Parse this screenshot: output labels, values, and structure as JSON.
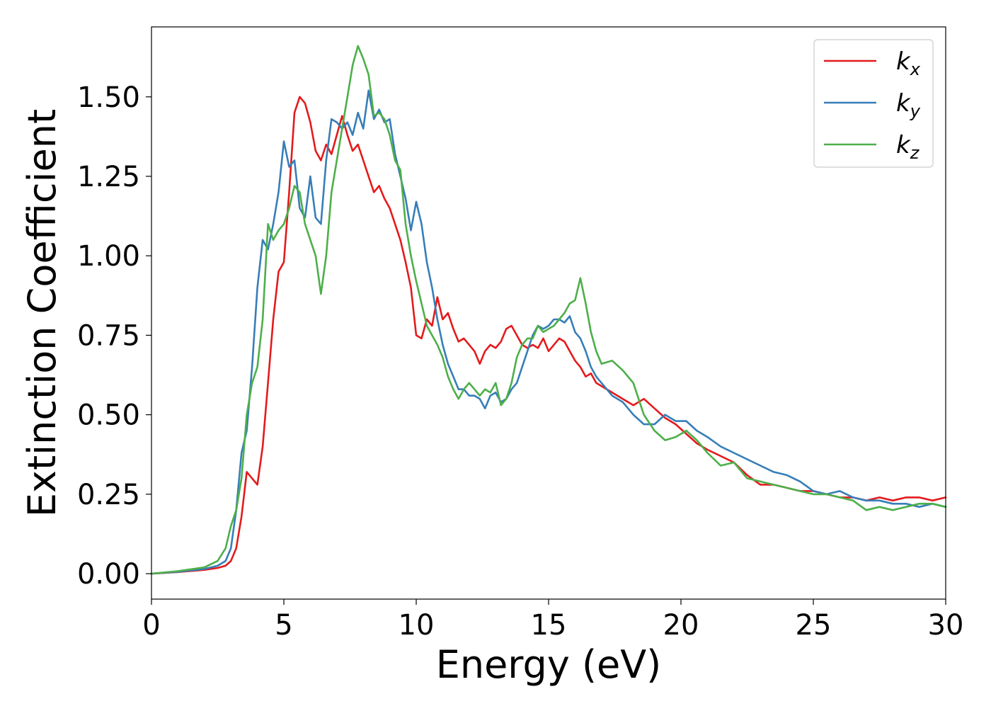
{
  "chart_data": {
    "type": "line",
    "title": "",
    "xlabel": "Energy (eV)",
    "ylabel": "Extinction Coefficient",
    "xlim": [
      0,
      30
    ],
    "ylim": [
      -0.08,
      1.72
    ],
    "xticks": [
      0,
      5,
      10,
      15,
      20,
      25,
      30
    ],
    "xtick_labels": [
      "0",
      "5",
      "10",
      "15",
      "20",
      "25",
      "30"
    ],
    "yticks": [
      0.0,
      0.25,
      0.5,
      0.75,
      1.0,
      1.25,
      1.5
    ],
    "ytick_labels": [
      "0.00",
      "0.25",
      "0.50",
      "0.75",
      "1.00",
      "1.25",
      "1.50"
    ],
    "grid": false,
    "legend_position": "top-right",
    "series": [
      {
        "name": "k_x",
        "label_base": "k",
        "label_sub": "x",
        "color": "#e41a1c",
        "x": [
          0,
          1,
          2,
          2.5,
          2.8,
          3.0,
          3.2,
          3.4,
          3.6,
          3.8,
          4.0,
          4.2,
          4.4,
          4.6,
          4.8,
          5.0,
          5.2,
          5.4,
          5.6,
          5.8,
          6.0,
          6.2,
          6.4,
          6.6,
          6.8,
          7.0,
          7.2,
          7.4,
          7.6,
          7.8,
          8.0,
          8.2,
          8.4,
          8.6,
          8.8,
          9.0,
          9.2,
          9.4,
          9.6,
          9.8,
          10.0,
          10.2,
          10.4,
          10.6,
          10.8,
          11.0,
          11.2,
          11.4,
          11.6,
          11.8,
          12.0,
          12.2,
          12.4,
          12.6,
          12.8,
          13.0,
          13.2,
          13.4,
          13.6,
          13.8,
          14.0,
          14.2,
          14.4,
          14.6,
          14.8,
          15.0,
          15.2,
          15.4,
          15.6,
          15.8,
          16.0,
          16.2,
          16.4,
          16.6,
          16.8,
          17.0,
          17.4,
          17.8,
          18.2,
          18.6,
          19.0,
          19.4,
          19.8,
          20.2,
          20.6,
          21.0,
          21.5,
          22.0,
          22.5,
          23.0,
          23.5,
          24.0,
          24.5,
          25.0,
          25.5,
          26.0,
          26.5,
          27.0,
          27.5,
          28.0,
          28.5,
          29.0,
          29.5,
          30.0
        ],
        "y": [
          0.0,
          0.005,
          0.012,
          0.018,
          0.025,
          0.04,
          0.08,
          0.18,
          0.32,
          0.3,
          0.28,
          0.4,
          0.6,
          0.8,
          0.95,
          0.98,
          1.2,
          1.45,
          1.5,
          1.48,
          1.42,
          1.33,
          1.3,
          1.35,
          1.32,
          1.38,
          1.44,
          1.38,
          1.33,
          1.35,
          1.3,
          1.25,
          1.2,
          1.22,
          1.18,
          1.15,
          1.1,
          1.05,
          0.98,
          0.9,
          0.75,
          0.74,
          0.8,
          0.78,
          0.87,
          0.8,
          0.82,
          0.77,
          0.73,
          0.74,
          0.72,
          0.7,
          0.66,
          0.7,
          0.72,
          0.71,
          0.73,
          0.77,
          0.78,
          0.75,
          0.72,
          0.71,
          0.72,
          0.71,
          0.74,
          0.7,
          0.72,
          0.74,
          0.73,
          0.7,
          0.67,
          0.65,
          0.62,
          0.63,
          0.6,
          0.59,
          0.57,
          0.55,
          0.53,
          0.55,
          0.52,
          0.49,
          0.47,
          0.44,
          0.41,
          0.39,
          0.37,
          0.35,
          0.31,
          0.28,
          0.28,
          0.27,
          0.26,
          0.26,
          0.25,
          0.24,
          0.24,
          0.23,
          0.24,
          0.23,
          0.24,
          0.24,
          0.23,
          0.24
        ]
      },
      {
        "name": "k_y",
        "label_base": "k",
        "label_sub": "y",
        "color": "#377eb8",
        "x": [
          0,
          1,
          2,
          2.5,
          2.8,
          3.0,
          3.2,
          3.4,
          3.6,
          3.8,
          4.0,
          4.2,
          4.4,
          4.6,
          4.8,
          5.0,
          5.2,
          5.4,
          5.6,
          5.8,
          6.0,
          6.2,
          6.4,
          6.6,
          6.8,
          7.0,
          7.2,
          7.4,
          7.6,
          7.8,
          8.0,
          8.2,
          8.4,
          8.6,
          8.8,
          9.0,
          9.2,
          9.4,
          9.6,
          9.8,
          10.0,
          10.2,
          10.4,
          10.6,
          10.8,
          11.0,
          11.2,
          11.4,
          11.6,
          11.8,
          12.0,
          12.2,
          12.4,
          12.6,
          12.8,
          13.0,
          13.2,
          13.4,
          13.6,
          13.8,
          14.0,
          14.2,
          14.4,
          14.6,
          14.8,
          15.0,
          15.2,
          15.4,
          15.6,
          15.8,
          16.0,
          16.2,
          16.4,
          16.6,
          16.8,
          17.0,
          17.4,
          17.8,
          18.2,
          18.6,
          19.0,
          19.4,
          19.8,
          20.2,
          20.6,
          21.0,
          21.5,
          22.0,
          22.5,
          23.0,
          23.5,
          24.0,
          24.5,
          25.0,
          25.5,
          26.0,
          26.5,
          27.0,
          27.5,
          28.0,
          28.5,
          29.0,
          29.5,
          30.0
        ],
        "y": [
          0.0,
          0.006,
          0.015,
          0.025,
          0.04,
          0.08,
          0.2,
          0.38,
          0.45,
          0.65,
          0.9,
          1.05,
          1.02,
          1.1,
          1.2,
          1.36,
          1.28,
          1.3,
          1.15,
          1.12,
          1.25,
          1.12,
          1.1,
          1.3,
          1.43,
          1.42,
          1.4,
          1.42,
          1.38,
          1.45,
          1.4,
          1.52,
          1.43,
          1.46,
          1.42,
          1.43,
          1.32,
          1.25,
          1.18,
          1.08,
          1.17,
          1.1,
          0.98,
          0.9,
          0.8,
          0.72,
          0.66,
          0.62,
          0.58,
          0.58,
          0.56,
          0.56,
          0.55,
          0.52,
          0.56,
          0.57,
          0.54,
          0.55,
          0.58,
          0.6,
          0.65,
          0.7,
          0.75,
          0.78,
          0.77,
          0.78,
          0.8,
          0.8,
          0.79,
          0.81,
          0.76,
          0.74,
          0.7,
          0.65,
          0.62,
          0.6,
          0.56,
          0.54,
          0.5,
          0.47,
          0.47,
          0.5,
          0.48,
          0.48,
          0.45,
          0.43,
          0.4,
          0.38,
          0.36,
          0.34,
          0.32,
          0.31,
          0.29,
          0.26,
          0.25,
          0.26,
          0.24,
          0.23,
          0.23,
          0.22,
          0.22,
          0.21,
          0.22,
          0.21
        ]
      },
      {
        "name": "k_z",
        "label_base": "k",
        "label_sub": "z",
        "color": "#4daf4a",
        "x": [
          0,
          1,
          2,
          2.5,
          2.8,
          3.0,
          3.2,
          3.4,
          3.6,
          3.8,
          4.0,
          4.2,
          4.4,
          4.6,
          4.8,
          5.0,
          5.2,
          5.4,
          5.6,
          5.8,
          6.0,
          6.2,
          6.4,
          6.6,
          6.8,
          7.0,
          7.2,
          7.4,
          7.6,
          7.8,
          8.0,
          8.2,
          8.4,
          8.6,
          8.8,
          9.0,
          9.2,
          9.4,
          9.6,
          9.8,
          10.0,
          10.2,
          10.4,
          10.6,
          10.8,
          11.0,
          11.2,
          11.4,
          11.6,
          11.8,
          12.0,
          12.2,
          12.4,
          12.6,
          12.8,
          13.0,
          13.2,
          13.4,
          13.6,
          13.8,
          14.0,
          14.2,
          14.4,
          14.6,
          14.8,
          15.0,
          15.2,
          15.4,
          15.6,
          15.8,
          16.0,
          16.2,
          16.4,
          16.6,
          16.8,
          17.0,
          17.4,
          17.8,
          18.2,
          18.6,
          19.0,
          19.4,
          19.8,
          20.2,
          20.6,
          21.0,
          21.5,
          22.0,
          22.5,
          23.0,
          23.5,
          24.0,
          24.5,
          25.0,
          25.5,
          26.0,
          26.5,
          27.0,
          27.5,
          28.0,
          28.5,
          29.0,
          29.5,
          30.0
        ],
        "y": [
          0.0,
          0.008,
          0.02,
          0.04,
          0.08,
          0.15,
          0.2,
          0.3,
          0.5,
          0.6,
          0.65,
          0.8,
          1.1,
          1.05,
          1.08,
          1.1,
          1.15,
          1.22,
          1.2,
          1.1,
          1.05,
          1.0,
          0.88,
          1.0,
          1.2,
          1.3,
          1.4,
          1.5,
          1.6,
          1.66,
          1.62,
          1.57,
          1.44,
          1.45,
          1.43,
          1.38,
          1.3,
          1.27,
          1.1,
          1.0,
          0.92,
          0.85,
          0.78,
          0.75,
          0.72,
          0.68,
          0.62,
          0.58,
          0.55,
          0.58,
          0.6,
          0.58,
          0.56,
          0.58,
          0.57,
          0.6,
          0.53,
          0.55,
          0.6,
          0.68,
          0.72,
          0.74,
          0.74,
          0.78,
          0.76,
          0.77,
          0.78,
          0.8,
          0.82,
          0.85,
          0.86,
          0.93,
          0.85,
          0.76,
          0.7,
          0.66,
          0.67,
          0.64,
          0.6,
          0.5,
          0.45,
          0.42,
          0.43,
          0.45,
          0.42,
          0.38,
          0.34,
          0.35,
          0.3,
          0.29,
          0.28,
          0.27,
          0.26,
          0.25,
          0.25,
          0.24,
          0.23,
          0.2,
          0.21,
          0.2,
          0.21,
          0.22,
          0.22,
          0.21
        ]
      }
    ]
  }
}
